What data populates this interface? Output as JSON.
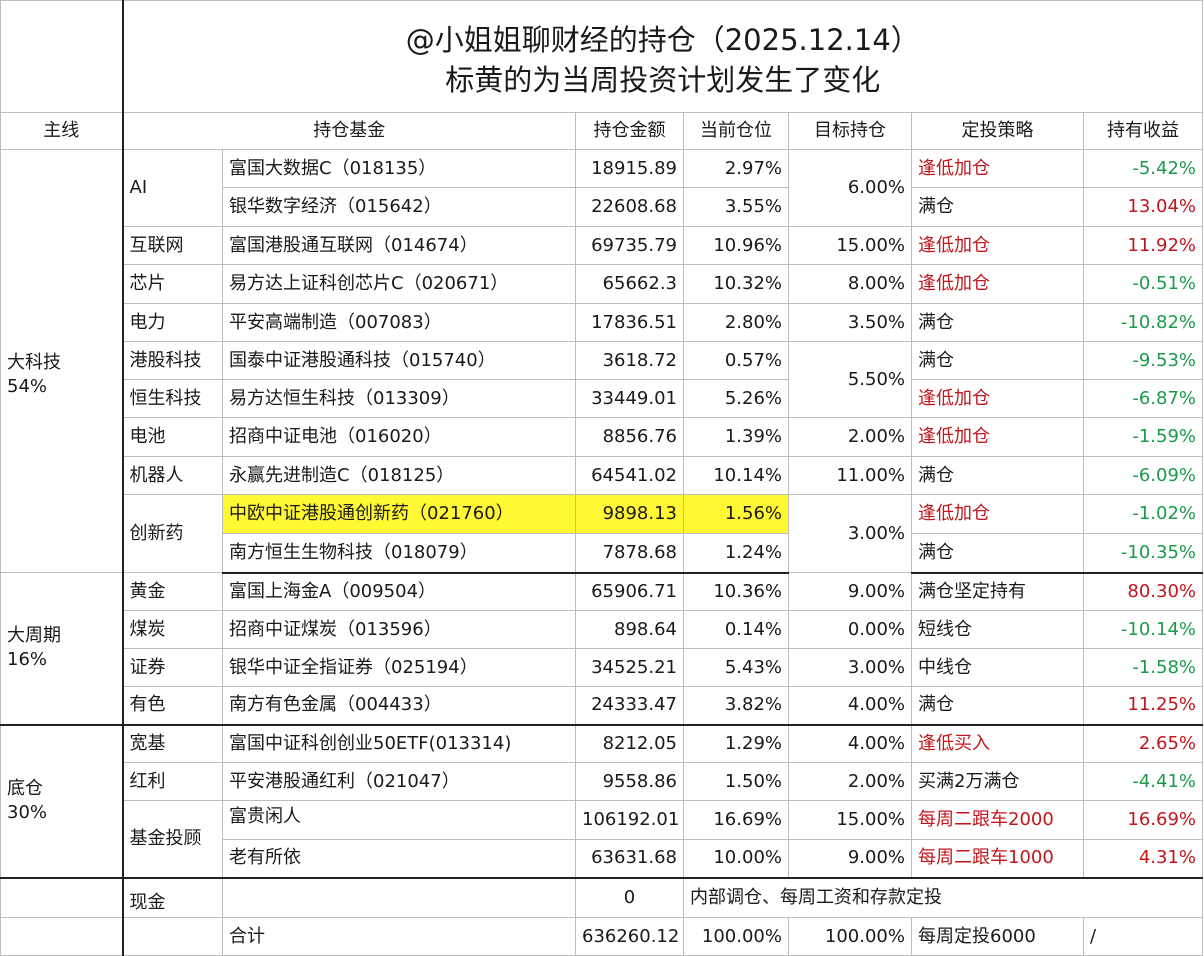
{
  "title": {
    "line1": "@小姐姐聊财经的持仓（2025.12.14）",
    "line2": "标黄的为当周投资计划发生了变化"
  },
  "headers": {
    "main": "主线",
    "fund": "持仓基金",
    "amount": "持仓金额",
    "position": "当前仓位",
    "target": "目标持仓",
    "strategy": "定投策略",
    "profit": "持有收益"
  },
  "groups": {
    "tech": "大科技\n54%",
    "cycle": "大周期\n16%",
    "base": "底仓\n30%"
  },
  "rows": [
    {
      "sub": "AI",
      "fund": "富国大数据C（018135）",
      "amount": "18915.89",
      "position": "2.97%",
      "target": "6.00%",
      "strategy": "逢低加仓",
      "profit": "-5.42%"
    },
    {
      "sub": "",
      "fund": "银华数字经济（015642）",
      "amount": "22608.68",
      "position": "3.55%",
      "target": "",
      "strategy": "满仓",
      "profit": "13.04%"
    },
    {
      "sub": "互联网",
      "fund": "富国港股通互联网（014674）",
      "amount": "69735.79",
      "position": "10.96%",
      "target": "15.00%",
      "strategy": "逢低加仓",
      "profit": "11.92%"
    },
    {
      "sub": "芯片",
      "fund": "易方达上证科创芯片C（020671）",
      "amount": "65662.3",
      "position": "10.32%",
      "target": "8.00%",
      "strategy": "逢低加仓",
      "profit": "-0.51%"
    },
    {
      "sub": "电力",
      "fund": "平安高端制造（007083）",
      "amount": "17836.51",
      "position": "2.80%",
      "target": "3.50%",
      "strategy": "满仓",
      "profit": "-10.82%"
    },
    {
      "sub": "港股科技",
      "fund": "国泰中证港股通科技（015740）",
      "amount": "3618.72",
      "position": "0.57%",
      "target": "5.50%",
      "strategy": "满仓",
      "profit": "-9.53%"
    },
    {
      "sub": "恒生科技",
      "fund": "易方达恒生科技（013309）",
      "amount": "33449.01",
      "position": "5.26%",
      "target": "",
      "strategy": "逢低加仓",
      "profit": "-6.87%"
    },
    {
      "sub": "电池",
      "fund": "招商中证电池（016020）",
      "amount": "8856.76",
      "position": "1.39%",
      "target": "2.00%",
      "strategy": "逢低加仓",
      "profit": "-1.59%"
    },
    {
      "sub": "机器人",
      "fund": "永赢先进制造C（018125）",
      "amount": "64541.02",
      "position": "10.14%",
      "target": "11.00%",
      "strategy": "满仓",
      "profit": "-6.09%"
    },
    {
      "sub": "创新药",
      "fund": "中欧中证港股通创新药（021760）",
      "amount": "9898.13",
      "position": "1.56%",
      "target": "3.00%",
      "strategy": "逢低加仓",
      "profit": "-1.02%"
    },
    {
      "sub": "",
      "fund": "南方恒生生物科技（018079）",
      "amount": "7878.68",
      "position": "1.24%",
      "target": "",
      "strategy": "满仓",
      "profit": "-10.35%"
    },
    {
      "sub": "黄金",
      "fund": "富国上海金A（009504）",
      "amount": "65906.71",
      "position": "10.36%",
      "target": "9.00%",
      "strategy": "满仓坚定持有",
      "profit": "80.30%"
    },
    {
      "sub": "煤炭",
      "fund": "招商中证煤炭（013596）",
      "amount": "898.64",
      "position": "0.14%",
      "target": "0.00%",
      "strategy": "短线仓",
      "profit": "-10.14%"
    },
    {
      "sub": "证券",
      "fund": "银华中证全指证券（025194）",
      "amount": "34525.21",
      "position": "5.43%",
      "target": "3.00%",
      "strategy": "中线仓",
      "profit": "-1.58%"
    },
    {
      "sub": "有色",
      "fund": "南方有色金属（004433）",
      "amount": "24333.47",
      "position": "3.82%",
      "target": "4.00%",
      "strategy": "满仓",
      "profit": "11.25%"
    },
    {
      "sub": "宽基",
      "fund": "富国中证科创创业50ETF(013314)",
      "amount": "8212.05",
      "position": "1.29%",
      "target": "4.00%",
      "strategy": "逢低买入",
      "profit": "2.65%"
    },
    {
      "sub": "红利",
      "fund": "平安港股通红利（021047）",
      "amount": "9558.86",
      "position": "1.50%",
      "target": "2.00%",
      "strategy": "买满2万满仓",
      "profit": "-4.41%"
    },
    {
      "sub": "基金投顾",
      "fund": "富贵闲人",
      "amount": "106192.01",
      "position": "16.69%",
      "target": "15.00%",
      "strategy": "每周二跟车2000",
      "profit": "16.69%"
    },
    {
      "sub": "",
      "fund": "老有所依",
      "amount": "63631.68",
      "position": "10.00%",
      "target": "9.00%",
      "strategy": "每周二跟车1000",
      "profit": "4.31%"
    }
  ],
  "cash": {
    "label": "现金",
    "amount": "0",
    "note": "内部调仓、每周工资和存款定投"
  },
  "total": {
    "label": "合计",
    "amount": "636260.12",
    "position": "100.00%",
    "target": "100.00%",
    "strategy": "每周定投6000",
    "profit": "/"
  },
  "colors": {
    "red": "#c0161c",
    "green": "#1b9b4a",
    "highlight": "#fff833"
  }
}
